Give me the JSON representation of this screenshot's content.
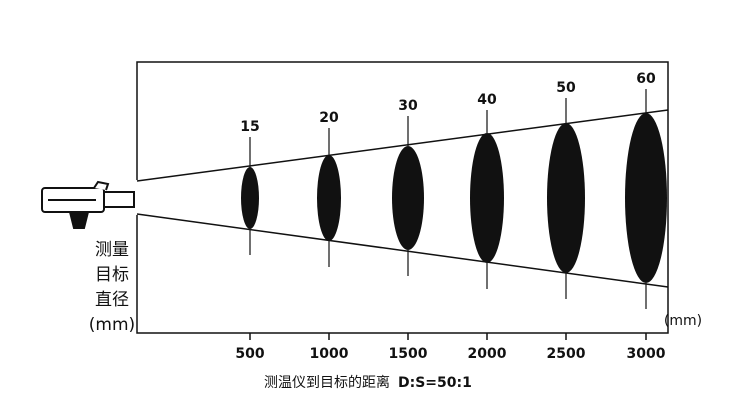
{
  "diagram": {
    "spots": [
      {
        "distance": "500",
        "diameter": "15"
      },
      {
        "distance": "1000",
        "diameter": "20"
      },
      {
        "distance": "1500",
        "diameter": "30"
      },
      {
        "distance": "2000",
        "diameter": "40"
      },
      {
        "distance": "2500",
        "diameter": "50"
      },
      {
        "distance": "3000",
        "diameter": "60"
      }
    ],
    "distance_unit": "(mm)",
    "y_label": [
      "测量",
      "目标",
      "直径",
      "(mm)"
    ],
    "x_label": "测温仪到目标的距离",
    "ratio": "D:S=50:1"
  }
}
